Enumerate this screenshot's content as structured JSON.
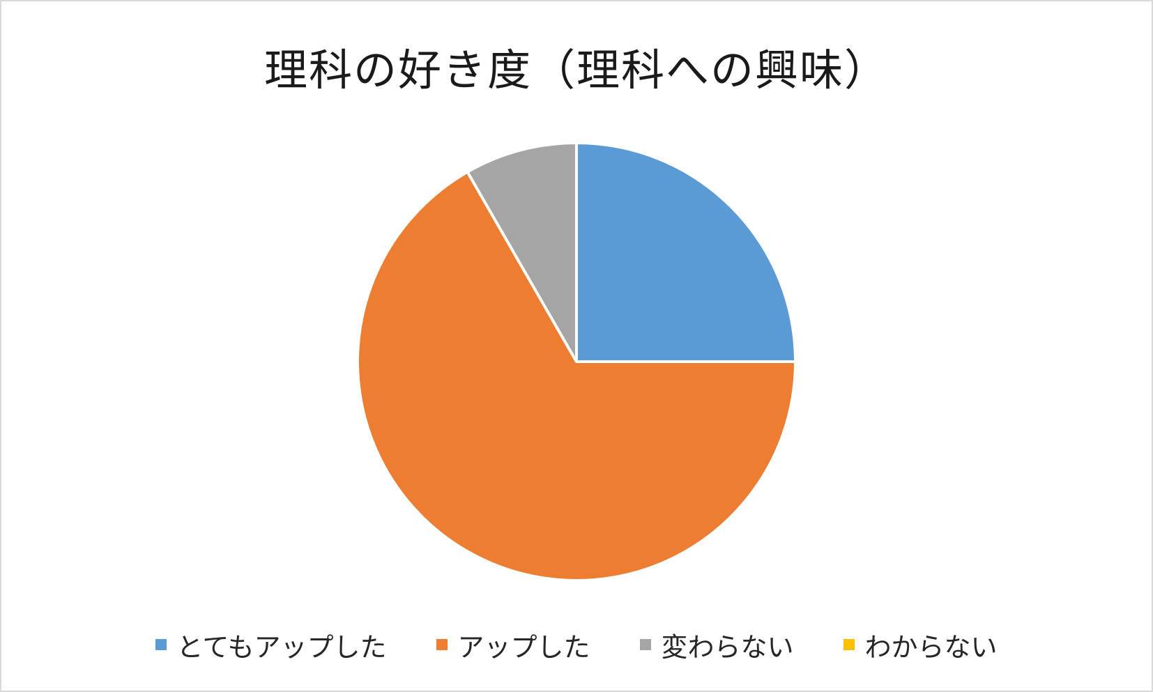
{
  "chart_data": {
    "type": "pie",
    "title": "理科の好き度（理科への興味）",
    "categories": [
      "とてもアップした",
      "アップした",
      "変わらない",
      "わからない"
    ],
    "values": [
      25,
      66.7,
      8.3,
      0
    ],
    "colors": [
      "#5b9bd5",
      "#ed7d31",
      "#a5a5a5",
      "#ffc000"
    ],
    "legend": "bottom",
    "start_angle_deg": 0,
    "direction": "clockwise"
  }
}
